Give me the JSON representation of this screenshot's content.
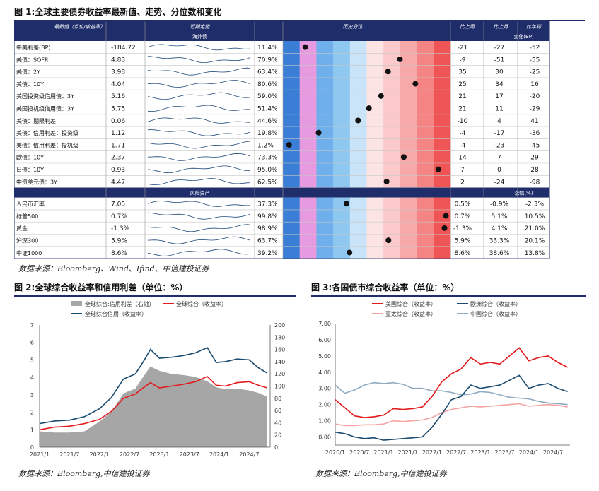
{
  "fig1": {
    "title": "图 1:全球主要债券收益率最新值、走势、分位数和变化",
    "source": "数据来源：Bloomberg、Wind、Ifind、中信建投证券",
    "headers": {
      "latest": "最新值（点位/收益率）",
      "trend": "近期走势",
      "pct": "历史分位",
      "w": "比上周",
      "m": "比上月",
      "y": "比年初"
    },
    "section1": {
      "label": "海外债",
      "change": "变化(BP)"
    },
    "section2": {
      "label": "风险资产",
      "change": "涨幅(%)"
    },
    "rows": [
      {
        "name": "中美利差(BP)",
        "val": "-184.72",
        "pct": "11.4%",
        "p": 0.114,
        "w": "-21",
        "m": "-27",
        "y": "-52"
      },
      {
        "name": "美债：SOFR",
        "val": "4.83",
        "pct": "70.9%",
        "p": 0.709,
        "w": "-9",
        "m": "-51",
        "y": "-55"
      },
      {
        "name": "美债：2Y",
        "val": "3.98",
        "pct": "63.4%",
        "p": 0.634,
        "w": "35",
        "m": "30",
        "y": "-25"
      },
      {
        "name": "美债：10Y",
        "val": "4.04",
        "pct": "80.6%",
        "p": 0.806,
        "w": "25",
        "m": "34",
        "y": "16"
      },
      {
        "name": "美国投资级信用债：3Y",
        "val": "5.16",
        "pct": "59.0%",
        "p": 0.59,
        "w": "21",
        "m": "17",
        "y": "-20"
      },
      {
        "name": "美国投机级信用债：3Y",
        "val": "5.75",
        "pct": "51.4%",
        "p": 0.514,
        "w": "21",
        "m": "11",
        "y": "-29"
      },
      {
        "name": "美债：期限利差",
        "val": "0.06",
        "pct": "44.6%",
        "p": 0.446,
        "w": "-10",
        "m": "4",
        "y": "41"
      },
      {
        "name": "美债：信用利差：投资级",
        "val": "1.12",
        "pct": "19.8%",
        "p": 0.198,
        "w": "-4",
        "m": "-17",
        "y": "-36"
      },
      {
        "name": "美债：信用利差：投机级",
        "val": "1.71",
        "pct": "1.2%",
        "p": 0.012,
        "w": "-4",
        "m": "-23",
        "y": "-45"
      },
      {
        "name": "欧债：10Y",
        "val": "2.37",
        "pct": "73.3%",
        "p": 0.733,
        "w": "14",
        "m": "7",
        "y": "29"
      },
      {
        "name": "日债：10Y",
        "val": "0.93",
        "pct": "95.0%",
        "p": 0.95,
        "w": "7",
        "m": "0",
        "y": "28"
      },
      {
        "name": "中资美元债：3Y",
        "val": "4.47",
        "pct": "62.5%",
        "p": 0.625,
        "w": "2",
        "m": "-24",
        "y": "-98"
      }
    ],
    "rows2": [
      {
        "name": "人民币汇率",
        "val": "7.05",
        "pct": "37.3%",
        "p": 0.373,
        "w": "0.5%",
        "m": "-0.9%",
        "y": "-2.3%"
      },
      {
        "name": "标普500",
        "val": "0.7%",
        "pct": "99.8%",
        "p": 0.998,
        "w": "0.7%",
        "m": "5.1%",
        "y": "10.5%"
      },
      {
        "name": "黄金",
        "val": "-1.3%",
        "pct": "98.9%",
        "p": 0.989,
        "w": "-1.3%",
        "m": "4.1%",
        "y": "21.0%"
      },
      {
        "name": "沪深300",
        "val": "5.9%",
        "pct": "63.7%",
        "p": 0.637,
        "w": "5.9%",
        "m": "33.3%",
        "y": "20.1%"
      },
      {
        "name": "中证1000",
        "val": "8.6%",
        "pct": "39.2%",
        "p": 0.392,
        "w": "8.6%",
        "m": "38.6%",
        "y": "13.8%"
      }
    ]
  },
  "fig2": {
    "title": "图 2:全球综合收益率和信用利差（单位：%）",
    "source": "数据来源：Bloomberg,中信建投证券"
  },
  "fig3": {
    "title": "图 3:各国债市综合收益率（单位：%）",
    "source": "数据来源：Bloomberg,中信建投证券"
  },
  "chart_data": [
    {
      "type": "area",
      "legend": [
        "全球综合:信用利差（右轴）",
        "全球综合（收益率）",
        "全球综合信用（收益率）"
      ],
      "colors": {
        "spread": "#a6a6a6",
        "yield": "#e31a1c",
        "credit": "#1a4a6e"
      },
      "x_ticks": [
        "2021/1",
        "2021/7",
        "2022/1",
        "2022/7",
        "2023/1",
        "2023/7",
        "2024/1",
        "2024/7"
      ],
      "ylim_left": [
        0,
        7
      ],
      "yticks_left": [
        "0",
        "1",
        "2",
        "3",
        "4",
        "5",
        "6",
        "7"
      ],
      "ylim_right": [
        0,
        200
      ],
      "yticks_right": [
        "0",
        "20",
        "40",
        "60",
        "80",
        "100",
        "120",
        "140",
        "160",
        "180",
        "200"
      ],
      "x": [
        2021.0,
        2021.25,
        2021.5,
        2021.75,
        2022.0,
        2022.2,
        2022.4,
        2022.6,
        2022.75,
        2022.85,
        2023.0,
        2023.2,
        2023.4,
        2023.6,
        2023.8,
        2023.95,
        2024.1,
        2024.3,
        2024.5,
        2024.65,
        2024.8
      ],
      "series": [
        {
          "name": "全球综合（收益率）",
          "values": [
            1.0,
            1.15,
            1.2,
            1.35,
            1.6,
            2.05,
            2.8,
            3.05,
            3.45,
            3.7,
            3.4,
            3.5,
            3.6,
            3.75,
            4.05,
            3.55,
            3.5,
            3.7,
            3.75,
            3.55,
            3.4
          ]
        },
        {
          "name": "全球综合信用（收益率）",
          "values": [
            1.35,
            1.5,
            1.55,
            1.75,
            2.2,
            2.85,
            3.9,
            4.2,
            5.0,
            5.6,
            5.1,
            5.15,
            5.25,
            5.4,
            5.7,
            4.85,
            4.9,
            5.05,
            5.0,
            4.55,
            4.25
          ]
        },
        {
          "name": "全球综合:信用利差（右轴）",
          "values": [
            26,
            24,
            24,
            26,
            42,
            58,
            88,
            96,
            118,
            132,
            125,
            120,
            118,
            115,
            108,
            98,
            95,
            96,
            93,
            89,
            83
          ]
        }
      ]
    },
    {
      "type": "line",
      "legend": [
        "美国综合（收益率）",
        "欧洲综合（收益率）",
        "亚太综合（收益率）",
        "中国综合（收益率）"
      ],
      "colors": [
        "#e31a1c",
        "#1a4a6e",
        "#f4a3a3",
        "#8fa9c1"
      ],
      "x_ticks": [
        "2020/1",
        "2020/7",
        "2021/1",
        "2021/7",
        "2022/1",
        "2022/7",
        "2023/1",
        "2023/7",
        "2024/1",
        "2024/7"
      ],
      "ylim": [
        -0.5,
        7.0
      ],
      "yticks": [
        "0.00",
        "1.00",
        "2.00",
        "3.00",
        "4.00",
        "5.00",
        "6.00",
        "7.00"
      ],
      "x": [
        2020.0,
        2020.2,
        2020.4,
        2020.6,
        2020.8,
        2021.0,
        2021.2,
        2021.4,
        2021.6,
        2021.8,
        2022.0,
        2022.2,
        2022.4,
        2022.6,
        2022.8,
        2023.0,
        2023.2,
        2023.4,
        2023.6,
        2023.8,
        2024.0,
        2024.2,
        2024.4,
        2024.6,
        2024.8
      ],
      "series": [
        {
          "name": "美国综合（收益率）",
          "values": [
            2.3,
            1.8,
            1.3,
            1.2,
            1.25,
            1.35,
            1.75,
            1.7,
            1.75,
            1.85,
            2.5,
            3.4,
            3.9,
            4.2,
            4.9,
            4.5,
            4.6,
            4.5,
            5.0,
            5.5,
            4.7,
            4.9,
            5.0,
            4.6,
            4.3
          ]
        },
        {
          "name": "欧洲综合（收益率）",
          "values": [
            0.3,
            0.2,
            0.0,
            -0.1,
            -0.05,
            -0.2,
            -0.15,
            -0.1,
            -0.05,
            0.0,
            0.6,
            1.4,
            2.3,
            2.5,
            3.2,
            3.0,
            3.1,
            3.2,
            3.5,
            3.8,
            3.0,
            3.2,
            3.3,
            3.0,
            2.8
          ]
        },
        {
          "name": "亚太综合（收益率）",
          "values": [
            0.8,
            0.7,
            0.7,
            0.75,
            0.75,
            0.8,
            1.0,
            0.95,
            1.0,
            1.05,
            1.2,
            1.5,
            1.7,
            1.8,
            1.9,
            1.85,
            1.9,
            1.95,
            2.0,
            2.05,
            1.9,
            1.95,
            2.0,
            1.95,
            1.85
          ]
        },
        {
          "name": "中国综合（收益率）",
          "values": [
            3.2,
            2.7,
            2.9,
            3.2,
            3.35,
            3.3,
            3.35,
            3.25,
            3.0,
            3.0,
            2.85,
            2.85,
            2.75,
            2.6,
            2.65,
            2.8,
            2.75,
            2.6,
            2.45,
            2.4,
            2.35,
            2.2,
            2.1,
            2.05,
            2.0
          ]
        }
      ]
    }
  ]
}
